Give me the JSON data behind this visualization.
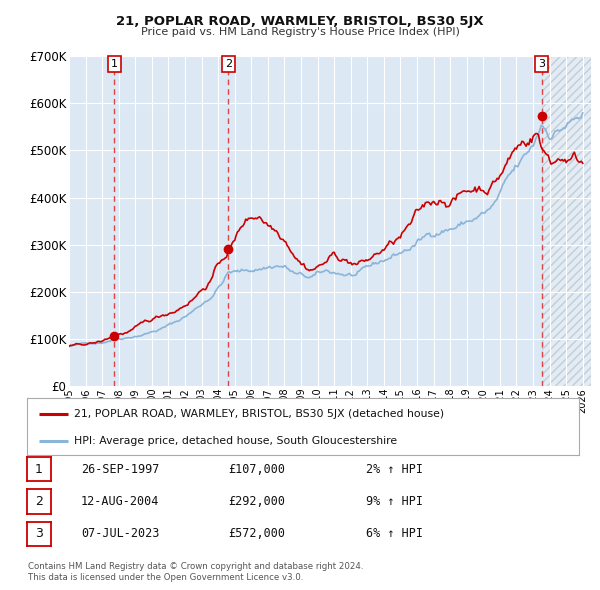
{
  "title": "21, POPLAR ROAD, WARMLEY, BRISTOL, BS30 5JX",
  "subtitle": "Price paid vs. HM Land Registry's House Price Index (HPI)",
  "ylim": [
    0,
    700000
  ],
  "xlim_start": 1995.0,
  "xlim_end": 2026.5,
  "yticks": [
    0,
    100000,
    200000,
    300000,
    400000,
    500000,
    600000,
    700000
  ],
  "ytick_labels": [
    "£0",
    "£100K",
    "£200K",
    "£300K",
    "£400K",
    "£500K",
    "£600K",
    "£700K"
  ],
  "xticks": [
    1995,
    1996,
    1997,
    1998,
    1999,
    2000,
    2001,
    2002,
    2003,
    2004,
    2005,
    2006,
    2007,
    2008,
    2009,
    2010,
    2011,
    2012,
    2013,
    2014,
    2015,
    2016,
    2017,
    2018,
    2019,
    2020,
    2021,
    2022,
    2023,
    2024,
    2025,
    2026
  ],
  "hpi_color": "#8ab4d8",
  "price_color": "#cc0000",
  "vline_color": "#dd3333",
  "sale_points": [
    {
      "year": 1997.73,
      "price": 107000,
      "label": "1"
    },
    {
      "year": 2004.62,
      "price": 292000,
      "label": "2"
    },
    {
      "year": 2023.52,
      "price": 572000,
      "label": "3"
    }
  ],
  "legend_label_price": "21, POPLAR ROAD, WARMLEY, BRISTOL, BS30 5JX (detached house)",
  "legend_label_hpi": "HPI: Average price, detached house, South Gloucestershire",
  "table_rows": [
    {
      "num": "1",
      "date": "26-SEP-1997",
      "price": "£107,000",
      "hpi": "2% ↑ HPI"
    },
    {
      "num": "2",
      "date": "12-AUG-2004",
      "price": "£292,000",
      "hpi": "9% ↑ HPI"
    },
    {
      "num": "3",
      "date": "07-JUL-2023",
      "price": "£572,000",
      "hpi": "6% ↑ HPI"
    }
  ],
  "footer": "Contains HM Land Registry data © Crown copyright and database right 2024.\nThis data is licensed under the Open Government Licence v3.0.",
  "bg_color": "#ffffff",
  "plot_bg_color": "#f0f0f0",
  "grid_color": "#ffffff",
  "band_color": "#dce8f4",
  "hatch_color": "#c8d8e8"
}
